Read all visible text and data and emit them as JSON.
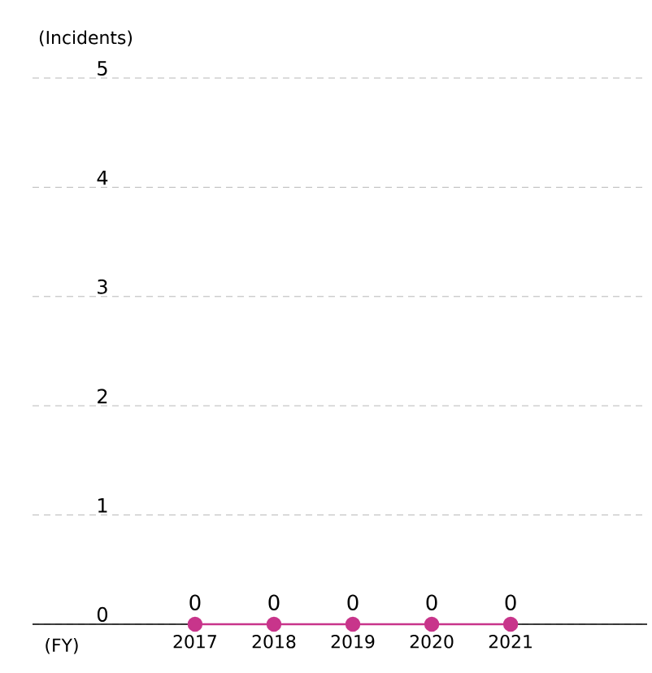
{
  "chart_data": {
    "type": "line",
    "xlabel": "(FY)",
    "ylabel": "(Incidents)",
    "categories": [
      "2017",
      "2018",
      "2019",
      "2020",
      "2021"
    ],
    "series": [
      {
        "color": "#c8358b",
        "values": [
          0,
          0,
          0,
          0,
          0
        ],
        "value_labels": [
          "0",
          "0",
          "0",
          "0",
          "0"
        ]
      }
    ],
    "ylim": [
      0,
      5
    ],
    "yticks": [
      0,
      1,
      2,
      3,
      4,
      5
    ],
    "grid": "y",
    "marker": "circle",
    "line_style": "solid"
  }
}
